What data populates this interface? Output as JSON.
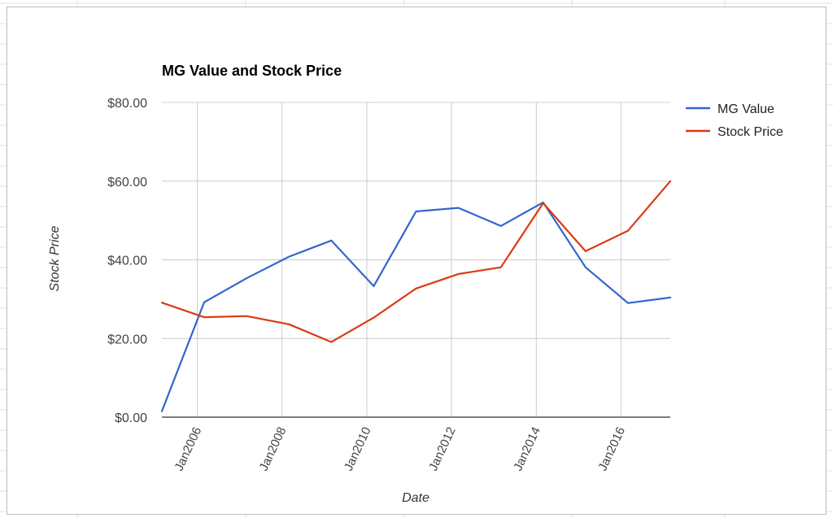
{
  "chart_data": {
    "type": "line",
    "title": "MG Value and Stock Price",
    "xlabel": "Date",
    "ylabel": "Stock Price",
    "x_tick_labels": [
      "Jan2006",
      "Jan2008",
      "Jan2010",
      "Jan2012",
      "Jan2014",
      "Jan2016"
    ],
    "y_tick_labels": [
      "$0.00",
      "$20.00",
      "$40.00",
      "$60.00",
      "$80.00"
    ],
    "x_range": [
      "2005-03-01",
      "2017-03-01"
    ],
    "ylim": [
      0,
      80
    ],
    "x": [
      "2005-03-01",
      "2006-03-01",
      "2007-03-01",
      "2008-03-01",
      "2009-03-01",
      "2010-03-01",
      "2011-03-01",
      "2012-03-01",
      "2013-03-01",
      "2014-03-01",
      "2015-03-01",
      "2016-03-01",
      "2017-03-01"
    ],
    "series": [
      {
        "name": "MG Value",
        "color": "#3366cc",
        "values": [
          1.5,
          29.2,
          35.3,
          40.8,
          44.9,
          33.3,
          52.3,
          53.2,
          48.6,
          54.6,
          38.1,
          29.0,
          30.4
        ]
      },
      {
        "name": "Stock Price",
        "color": "#dc3912",
        "values": [
          29.1,
          25.4,
          25.7,
          23.6,
          19.1,
          25.3,
          32.7,
          36.4,
          38.1,
          54.4,
          42.2,
          47.4,
          60.0
        ]
      }
    ],
    "grid": true,
    "legend": "right"
  }
}
